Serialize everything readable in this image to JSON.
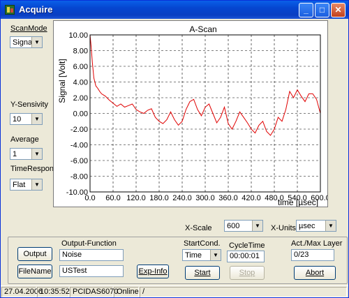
{
  "window": {
    "title": "Acquire",
    "minimize_glyph": "_",
    "maximize_glyph": "□",
    "close_glyph": "✕"
  },
  "left_panel": {
    "scan_mode": {
      "label": "ScanMode",
      "value": "Signal"
    },
    "y_sensitivity": {
      "label": "Y-Sensivity",
      "value": "10"
    },
    "average": {
      "label": "Average",
      "value": "1"
    },
    "time_response": {
      "label": "TimeResponse",
      "value": "Flat"
    }
  },
  "chart_data": {
    "type": "line",
    "title": "A-Scan",
    "xlabel": "time [µsec]",
    "ylabel": "Signal [Volt]",
    "xlim": [
      0,
      600
    ],
    "ylim": [
      -10,
      10
    ],
    "x_tick_labels": [
      "0.0",
      "60.0",
      "120.0",
      "180.0",
      "240.0",
      "300.0",
      "360.0",
      "420.0",
      "480.0",
      "540.0",
      "600.0"
    ],
    "y_tick_labels": [
      "10.00",
      "8.00",
      "6.00",
      "4.00",
      "2.00",
      "0.00",
      "-2.00",
      "-4.00",
      "-6.00",
      "-8.00",
      "-10.00"
    ],
    "grid": true,
    "line_color": "#e00000",
    "series": [
      {
        "x": [
          0,
          3,
          6,
          10,
          15,
          20,
          25,
          30,
          40,
          50,
          60,
          70,
          80,
          90,
          100,
          110,
          120,
          130,
          140,
          150,
          160,
          170,
          180,
          190,
          200,
          210,
          220,
          230,
          240,
          250,
          260,
          270,
          280,
          290,
          300,
          310,
          320,
          330,
          340,
          350,
          360,
          370,
          380,
          390,
          400,
          410,
          420,
          430,
          440,
          450,
          460,
          470,
          480,
          490,
          500,
          510,
          520,
          530,
          540,
          550,
          560,
          570,
          580,
          590,
          600
        ],
        "y": [
          10.0,
          8.5,
          6.5,
          4.5,
          3.5,
          3.2,
          2.8,
          2.5,
          2.2,
          1.7,
          1.3,
          0.9,
          1.2,
          0.8,
          1.0,
          1.2,
          0.5,
          0.2,
          0.0,
          0.4,
          0.6,
          -0.5,
          -1.0,
          -1.3,
          -0.8,
          0.2,
          -0.8,
          -1.5,
          -1.0,
          0.5,
          1.5,
          1.8,
          0.5,
          -0.3,
          0.8,
          1.2,
          0.0,
          -1.2,
          -0.5,
          0.8,
          -1.3,
          -2.0,
          -1.0,
          0.2,
          -0.5,
          -1.2,
          -2.0,
          -2.5,
          -1.5,
          -1.0,
          -2.3,
          -2.8,
          -2.0,
          -0.5,
          -1.0,
          0.5,
          2.8,
          2.0,
          3.0,
          2.2,
          1.5,
          2.5,
          2.5,
          1.8,
          0.0
        ]
      }
    ]
  },
  "scale": {
    "x_scale": {
      "label": "X-Scale",
      "value": "600"
    },
    "x_units": {
      "label": "X-Units",
      "value": "µsec"
    }
  },
  "controls": {
    "output_button": "Output",
    "filename_button": "FileName",
    "output_function": {
      "label": "Output-Function",
      "value": "Noise"
    },
    "filename_value": "USTest",
    "exp_info_button": "Exp-Info",
    "start_cond": {
      "label": "StartCond.",
      "value": "Time"
    },
    "cycle_time": {
      "label": "CycleTime",
      "value": "00:00:01"
    },
    "start_button": "Start",
    "stop_button": "Stop",
    "act_max_layer": {
      "label": "Act./Max Layer",
      "value": "0/23"
    },
    "abort_button": "Abort"
  },
  "status_bar": {
    "date": "27.04.2006",
    "time": "10:35:52",
    "device": "PCIDAS6070",
    "state": "Online",
    "extra": "/"
  }
}
